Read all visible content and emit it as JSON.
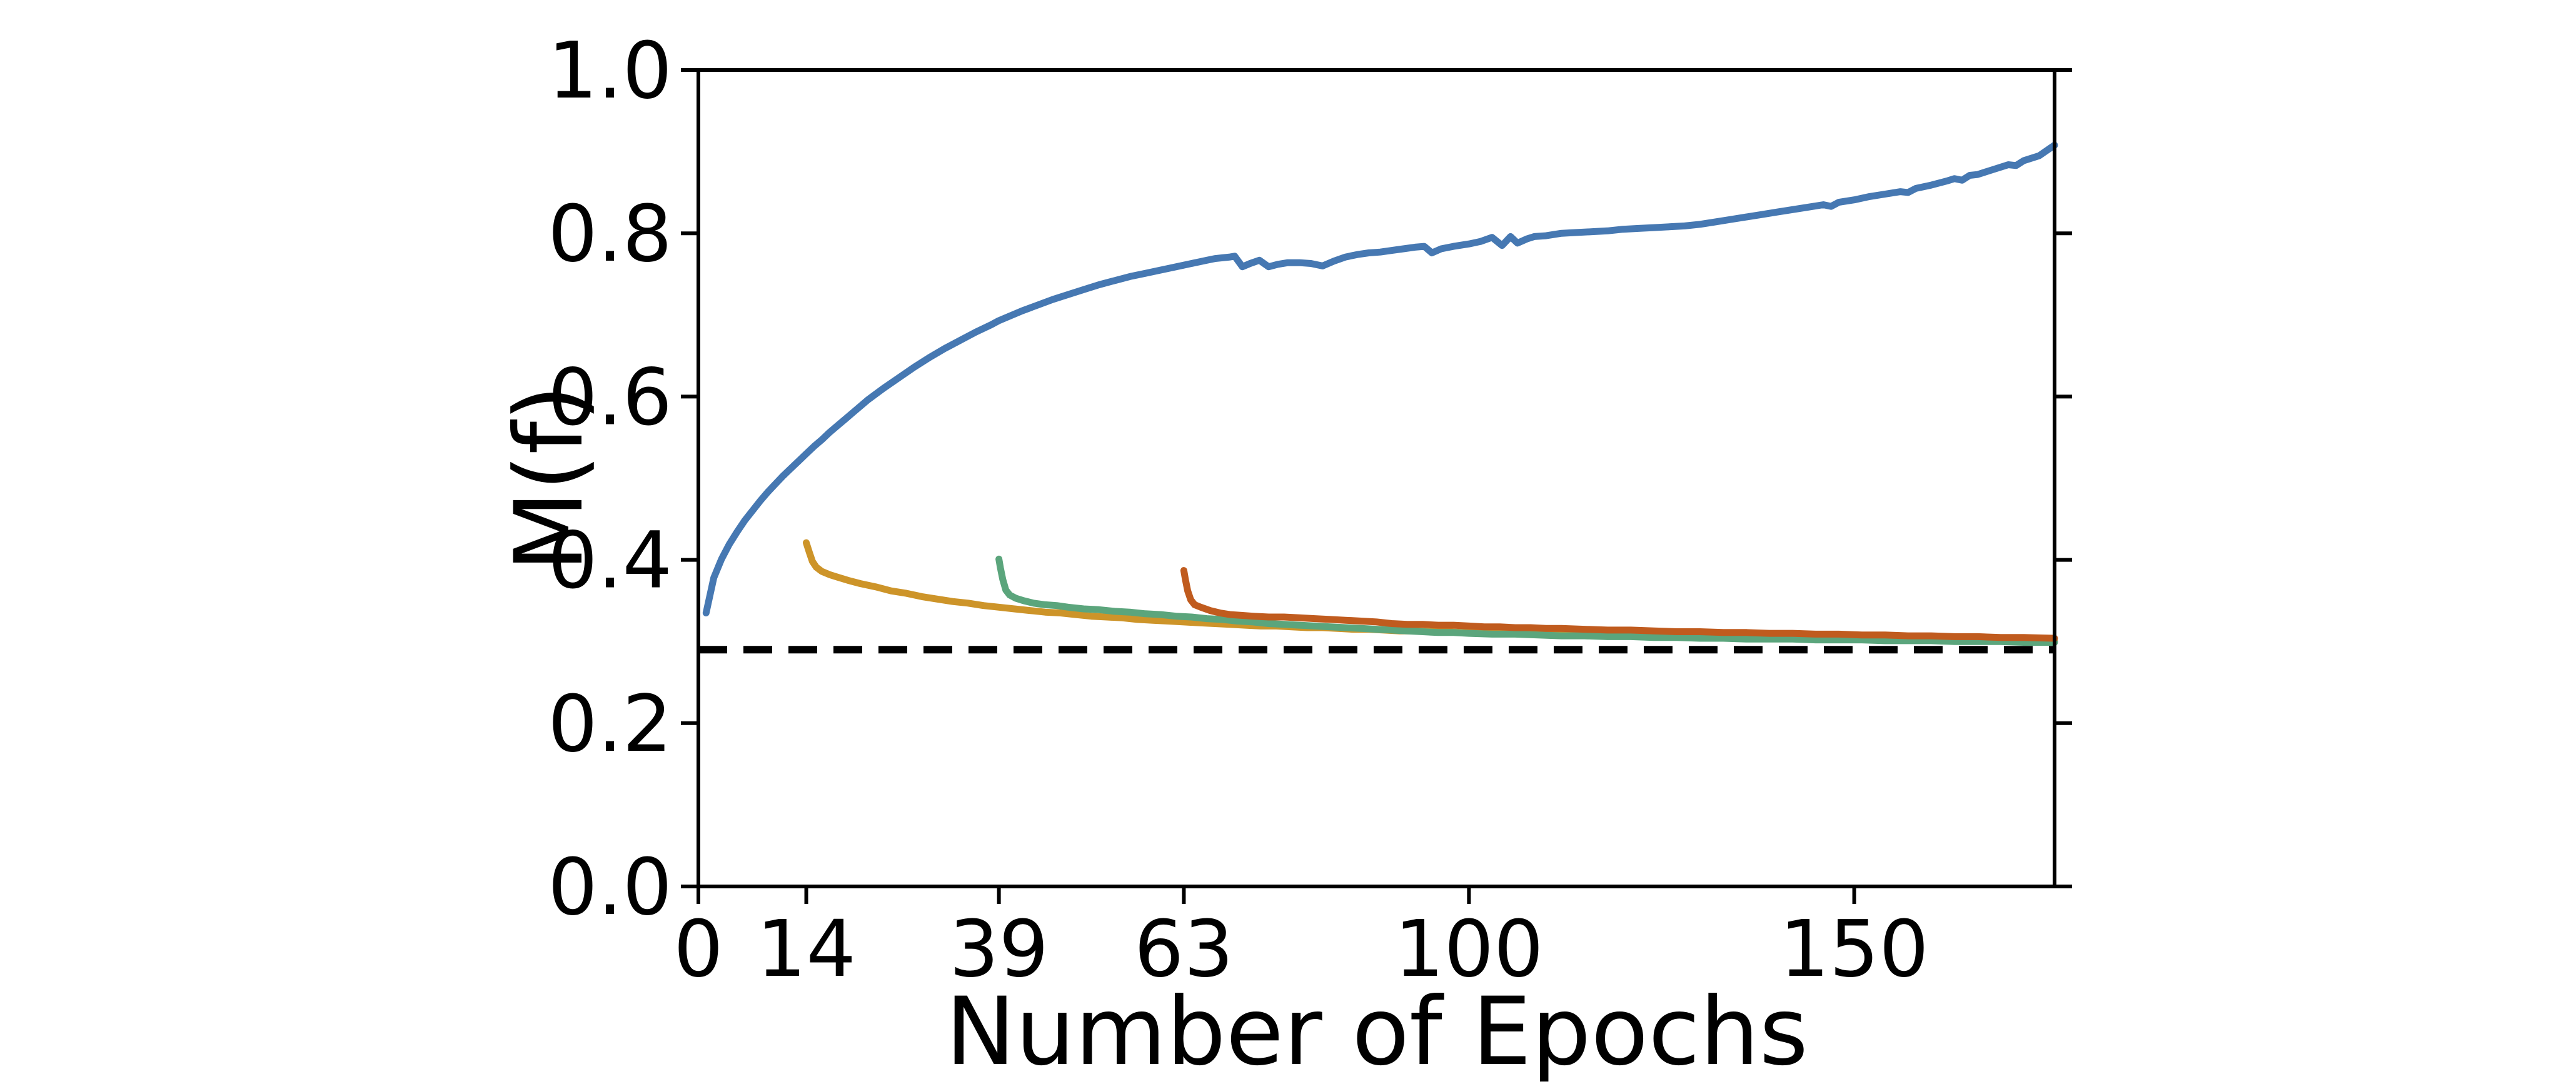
{
  "figure": {
    "background": "#ffffff",
    "text_color": "#000000"
  },
  "chart_data": {
    "type": "line",
    "title": "",
    "xlabel": "Number of Epochs",
    "ylabel": "M(f)",
    "xlim": [
      0,
      176
    ],
    "ylim": [
      0.0,
      1.0
    ],
    "grid": false,
    "legend_position": "none",
    "x_ticks": {
      "values": [
        0,
        14,
        39,
        63,
        100,
        150
      ],
      "labels": [
        "0",
        "14",
        "39",
        "63",
        "100",
        "150"
      ]
    },
    "y_ticks": {
      "values": [
        0.0,
        0.2,
        0.4,
        0.6,
        0.8,
        1.0
      ],
      "labels": [
        "0.0",
        "0.2",
        "0.4",
        "0.6",
        "0.8",
        "1.0"
      ]
    },
    "baseline": {
      "value": 0.29,
      "style": "dashed",
      "color": "#000000",
      "width": 12,
      "dash": [
        46,
        26
      ]
    },
    "series": [
      {
        "name": "blue-curve-start-epoch-0",
        "color": "#4678B2",
        "width": 11,
        "points": [
          [
            1,
            0.335
          ],
          [
            2,
            0.378
          ],
          [
            3,
            0.401
          ],
          [
            4,
            0.419
          ],
          [
            5,
            0.434
          ],
          [
            6,
            0.448
          ],
          [
            7,
            0.46
          ],
          [
            8,
            0.472
          ],
          [
            9,
            0.483
          ],
          [
            10,
            0.493
          ],
          [
            11,
            0.503
          ],
          [
            12,
            0.512
          ],
          [
            13,
            0.521
          ],
          [
            14,
            0.53
          ],
          [
            15,
            0.539
          ],
          [
            16,
            0.547
          ],
          [
            17,
            0.556
          ],
          [
            18,
            0.564
          ],
          [
            19,
            0.572
          ],
          [
            20,
            0.58
          ],
          [
            22,
            0.596
          ],
          [
            24,
            0.61
          ],
          [
            26,
            0.623
          ],
          [
            28,
            0.636
          ],
          [
            30,
            0.648
          ],
          [
            32,
            0.659
          ],
          [
            34,
            0.669
          ],
          [
            36,
            0.679
          ],
          [
            38,
            0.688
          ],
          [
            39,
            0.693
          ],
          [
            40,
            0.697
          ],
          [
            42,
            0.705
          ],
          [
            44,
            0.712
          ],
          [
            46,
            0.719
          ],
          [
            48,
            0.725
          ],
          [
            50,
            0.731
          ],
          [
            52,
            0.737
          ],
          [
            54,
            0.742
          ],
          [
            56,
            0.747
          ],
          [
            58,
            0.751
          ],
          [
            60,
            0.755
          ],
          [
            61,
            0.757
          ],
          [
            62,
            0.759
          ],
          [
            63,
            0.761
          ],
          [
            64,
            0.763
          ],
          [
            65,
            0.765
          ],
          [
            66,
            0.767
          ],
          [
            67,
            0.769
          ],
          [
            68,
            0.77
          ],
          [
            69,
            0.771
          ],
          [
            69.6,
            0.772
          ],
          [
            70.6,
            0.759
          ],
          [
            71.6,
            0.763
          ],
          [
            72.8,
            0.767
          ],
          [
            74,
            0.759
          ],
          [
            75.2,
            0.762
          ],
          [
            76.5,
            0.764
          ],
          [
            78,
            0.764
          ],
          [
            79.5,
            0.763
          ],
          [
            81,
            0.76
          ],
          [
            82.5,
            0.766
          ],
          [
            84,
            0.771
          ],
          [
            85.5,
            0.774
          ],
          [
            87,
            0.776
          ],
          [
            88.5,
            0.777
          ],
          [
            90,
            0.779
          ],
          [
            91.5,
            0.781
          ],
          [
            93,
            0.783
          ],
          [
            94.2,
            0.784
          ],
          [
            95.2,
            0.776
          ],
          [
            96.4,
            0.781
          ],
          [
            98,
            0.784
          ],
          [
            100,
            0.787
          ],
          [
            101.5,
            0.79
          ],
          [
            103,
            0.795
          ],
          [
            104.3,
            0.785
          ],
          [
            105.4,
            0.796
          ],
          [
            106.3,
            0.788
          ],
          [
            107.5,
            0.793
          ],
          [
            108.5,
            0.796
          ],
          [
            110,
            0.797
          ],
          [
            112,
            0.8
          ],
          [
            114,
            0.801
          ],
          [
            116,
            0.802
          ],
          [
            118,
            0.803
          ],
          [
            120,
            0.805
          ],
          [
            122,
            0.806
          ],
          [
            124,
            0.807
          ],
          [
            126,
            0.808
          ],
          [
            128,
            0.809
          ],
          [
            130,
            0.811
          ],
          [
            132,
            0.814
          ],
          [
            134,
            0.817
          ],
          [
            136,
            0.82
          ],
          [
            138,
            0.823
          ],
          [
            140,
            0.826
          ],
          [
            142,
            0.829
          ],
          [
            144,
            0.832
          ],
          [
            146,
            0.835
          ],
          [
            147,
            0.833
          ],
          [
            148,
            0.838
          ],
          [
            150,
            0.841
          ],
          [
            152,
            0.845
          ],
          [
            154,
            0.848
          ],
          [
            156,
            0.851
          ],
          [
            157,
            0.85
          ],
          [
            158,
            0.855
          ],
          [
            160,
            0.859
          ],
          [
            162,
            0.864
          ],
          [
            163,
            0.867
          ],
          [
            164,
            0.865
          ],
          [
            165,
            0.871
          ],
          [
            166,
            0.872
          ],
          [
            168,
            0.878
          ],
          [
            170,
            0.884
          ],
          [
            171,
            0.883
          ],
          [
            172,
            0.889
          ],
          [
            174,
            0.895
          ],
          [
            176,
            0.908
          ]
        ]
      },
      {
        "name": "gold-curve-start-epoch-14",
        "color": "#CD9429",
        "width": 11,
        "points": [
          [
            14,
            0.421
          ],
          [
            14.4,
            0.409
          ],
          [
            14.8,
            0.398
          ],
          [
            15.3,
            0.391
          ],
          [
            16,
            0.386
          ],
          [
            17,
            0.382
          ],
          [
            18,
            0.379
          ],
          [
            19.4,
            0.375
          ],
          [
            21,
            0.371
          ],
          [
            23,
            0.367
          ],
          [
            25,
            0.362
          ],
          [
            27,
            0.359
          ],
          [
            29,
            0.355
          ],
          [
            31,
            0.352
          ],
          [
            33,
            0.349
          ],
          [
            35,
            0.347
          ],
          [
            37,
            0.344
          ],
          [
            39,
            0.342
          ],
          [
            41,
            0.34
          ],
          [
            43,
            0.338
          ],
          [
            45,
            0.336
          ],
          [
            47,
            0.335
          ],
          [
            49,
            0.333
          ],
          [
            51,
            0.331
          ],
          [
            53,
            0.33
          ],
          [
            55,
            0.329
          ],
          [
            57,
            0.327
          ],
          [
            59,
            0.326
          ],
          [
            61,
            0.325
          ],
          [
            63,
            0.324
          ],
          [
            65,
            0.323
          ],
          [
            67,
            0.322
          ],
          [
            69,
            0.321
          ],
          [
            71,
            0.32
          ],
          [
            73,
            0.319
          ],
          [
            75,
            0.319
          ],
          [
            77,
            0.318
          ],
          [
            79,
            0.317
          ],
          [
            81,
            0.317
          ],
          [
            83,
            0.316
          ],
          [
            85,
            0.315
          ],
          [
            87,
            0.315
          ],
          [
            89,
            0.314
          ],
          [
            91,
            0.313
          ],
          [
            93,
            0.313
          ],
          [
            95,
            0.312
          ],
          [
            97,
            0.312
          ],
          [
            99,
            0.311
          ],
          [
            101,
            0.311
          ],
          [
            104,
            0.31
          ],
          [
            107,
            0.309
          ],
          [
            110,
            0.309
          ],
          [
            113,
            0.308
          ],
          [
            116,
            0.308
          ],
          [
            119,
            0.307
          ],
          [
            122,
            0.307
          ],
          [
            125,
            0.306
          ],
          [
            128,
            0.306
          ],
          [
            131,
            0.305
          ],
          [
            134,
            0.305
          ],
          [
            137,
            0.304
          ],
          [
            140,
            0.304
          ],
          [
            143,
            0.304
          ],
          [
            146,
            0.303
          ],
          [
            149,
            0.303
          ],
          [
            152,
            0.303
          ],
          [
            155,
            0.302
          ],
          [
            158,
            0.302
          ],
          [
            161,
            0.302
          ],
          [
            164,
            0.301
          ],
          [
            167,
            0.301
          ],
          [
            170,
            0.301
          ],
          [
            173,
            0.3
          ],
          [
            176,
            0.3
          ]
        ]
      },
      {
        "name": "green-curve-start-epoch-39",
        "color": "#5BA57C",
        "width": 11,
        "points": [
          [
            39,
            0.401
          ],
          [
            39.2,
            0.39
          ],
          [
            39.5,
            0.376
          ],
          [
            39.9,
            0.363
          ],
          [
            40.4,
            0.357
          ],
          [
            41.2,
            0.353
          ],
          [
            42.2,
            0.35
          ],
          [
            43.5,
            0.347
          ],
          [
            45,
            0.345
          ],
          [
            46.5,
            0.344
          ],
          [
            48,
            0.342
          ],
          [
            50,
            0.34
          ],
          [
            52,
            0.339
          ],
          [
            54,
            0.337
          ],
          [
            56,
            0.336
          ],
          [
            58,
            0.334
          ],
          [
            60,
            0.333
          ],
          [
            62,
            0.331
          ],
          [
            64,
            0.33
          ],
          [
            66,
            0.328
          ],
          [
            68,
            0.327
          ],
          [
            70,
            0.325
          ],
          [
            72,
            0.324
          ],
          [
            74,
            0.322
          ],
          [
            76,
            0.321
          ],
          [
            78,
            0.32
          ],
          [
            80,
            0.319
          ],
          [
            82,
            0.318
          ],
          [
            84,
            0.317
          ],
          [
            86,
            0.316
          ],
          [
            88,
            0.315
          ],
          [
            90,
            0.314
          ],
          [
            92,
            0.313
          ],
          [
            94,
            0.312
          ],
          [
            96,
            0.311
          ],
          [
            98,
            0.311
          ],
          [
            100,
            0.31
          ],
          [
            103,
            0.309
          ],
          [
            106,
            0.309
          ],
          [
            109,
            0.308
          ],
          [
            112,
            0.307
          ],
          [
            115,
            0.307
          ],
          [
            118,
            0.306
          ],
          [
            121,
            0.306
          ],
          [
            124,
            0.305
          ],
          [
            127,
            0.305
          ],
          [
            130,
            0.304
          ],
          [
            133,
            0.304
          ],
          [
            136,
            0.303
          ],
          [
            139,
            0.303
          ],
          [
            142,
            0.303
          ],
          [
            145,
            0.302
          ],
          [
            148,
            0.302
          ],
          [
            151,
            0.302
          ],
          [
            154,
            0.301
          ],
          [
            157,
            0.301
          ],
          [
            160,
            0.301
          ],
          [
            163,
            0.3
          ],
          [
            166,
            0.3
          ],
          [
            169,
            0.3
          ],
          [
            172,
            0.299
          ],
          [
            176,
            0.299
          ]
        ]
      },
      {
        "name": "rust-curve-start-epoch-63",
        "color": "#C05B1E",
        "width": 11,
        "points": [
          [
            63,
            0.387
          ],
          [
            63.2,
            0.376
          ],
          [
            63.5,
            0.362
          ],
          [
            63.9,
            0.351
          ],
          [
            64.4,
            0.345
          ],
          [
            65.2,
            0.342
          ],
          [
            66.4,
            0.338
          ],
          [
            67.7,
            0.335
          ],
          [
            69,
            0.333
          ],
          [
            70.5,
            0.332
          ],
          [
            72,
            0.331
          ],
          [
            74,
            0.33
          ],
          [
            76,
            0.33
          ],
          [
            78,
            0.329
          ],
          [
            80,
            0.328
          ],
          [
            82,
            0.327
          ],
          [
            84,
            0.326
          ],
          [
            86,
            0.325
          ],
          [
            88,
            0.324
          ],
          [
            90,
            0.322
          ],
          [
            92,
            0.321
          ],
          [
            94,
            0.321
          ],
          [
            96,
            0.32
          ],
          [
            98,
            0.32
          ],
          [
            100,
            0.319
          ],
          [
            102,
            0.318
          ],
          [
            104,
            0.318
          ],
          [
            106,
            0.317
          ],
          [
            108,
            0.317
          ],
          [
            110,
            0.316
          ],
          [
            112,
            0.316
          ],
          [
            115,
            0.315
          ],
          [
            118,
            0.314
          ],
          [
            121,
            0.314
          ],
          [
            124,
            0.313
          ],
          [
            127,
            0.312
          ],
          [
            130,
            0.312
          ],
          [
            133,
            0.311
          ],
          [
            136,
            0.311
          ],
          [
            139,
            0.31
          ],
          [
            142,
            0.31
          ],
          [
            145,
            0.309
          ],
          [
            148,
            0.309
          ],
          [
            151,
            0.308
          ],
          [
            154,
            0.308
          ],
          [
            157,
            0.307
          ],
          [
            160,
            0.307
          ],
          [
            163,
            0.306
          ],
          [
            166,
            0.306
          ],
          [
            169,
            0.305
          ],
          [
            172,
            0.305
          ],
          [
            176,
            0.304
          ]
        ]
      }
    ]
  }
}
